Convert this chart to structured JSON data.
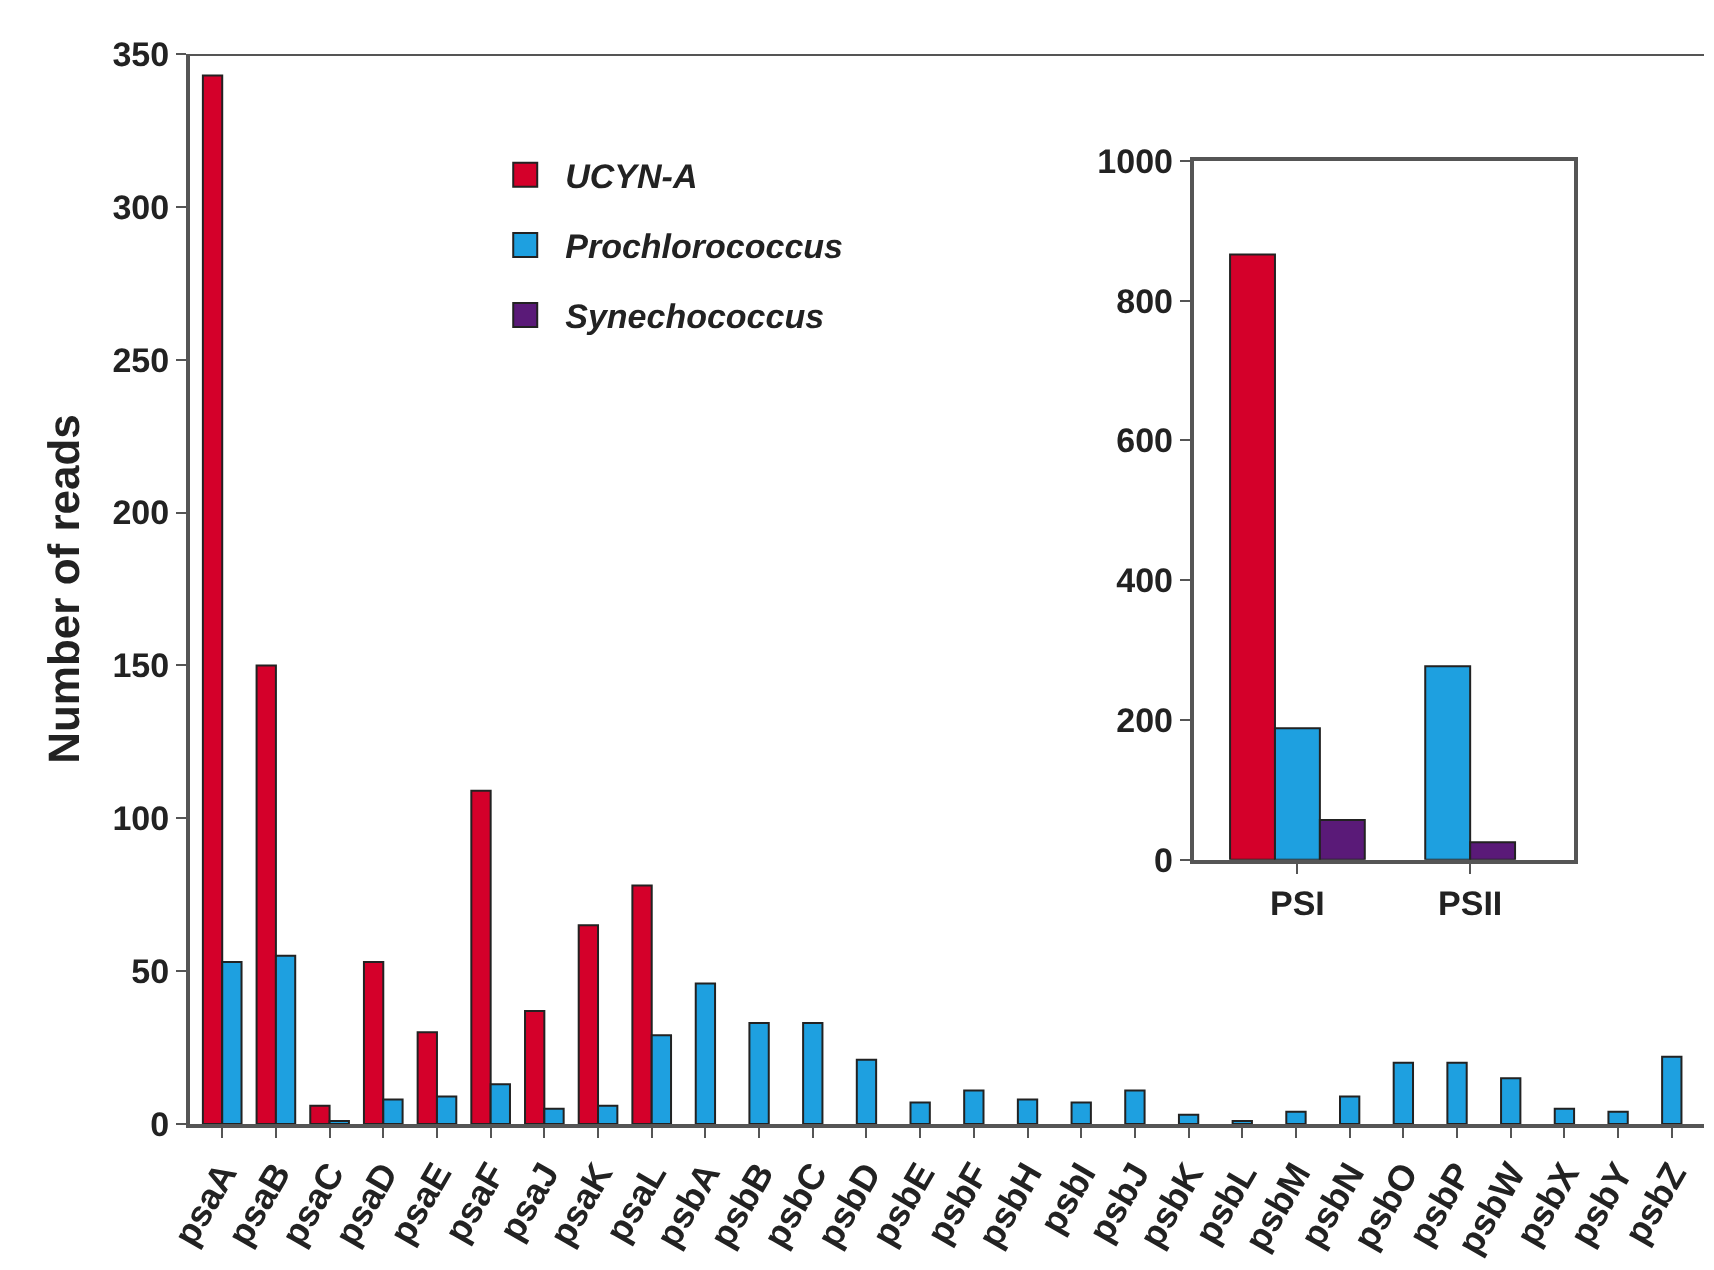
{
  "chart_data": [
    {
      "type": "bar",
      "ylabel": "Number of reads",
      "categories": [
        "psaA",
        "psaB",
        "psaC",
        "psaD",
        "psaE",
        "psaF",
        "psaJ",
        "psaK",
        "psaL",
        "psbA",
        "psbB",
        "psbC",
        "psbD",
        "psbE",
        "psbF",
        "psbH",
        "psbI",
        "psbJ",
        "psbK",
        "psbL",
        "psbM",
        "psbN",
        "psbO",
        "psbP",
        "psbW",
        "psbX",
        "psbY",
        "psbZ"
      ],
      "series": [
        {
          "name": "UCYN-A",
          "color": "#d4002a",
          "values": [
            343,
            150,
            6,
            53,
            30,
            109,
            37,
            65,
            78,
            null,
            null,
            null,
            null,
            null,
            null,
            null,
            null,
            null,
            null,
            null,
            null,
            null,
            null,
            null,
            null,
            null,
            null,
            null
          ]
        },
        {
          "name": "Prochlorococcus",
          "color": "#1ea0e0",
          "values": [
            53,
            55,
            1,
            8,
            9,
            13,
            5,
            6,
            29,
            46,
            33,
            33,
            21,
            7,
            11,
            8,
            7,
            11,
            3,
            1,
            4,
            9,
            20,
            20,
            15,
            5,
            4,
            22
          ]
        },
        {
          "name": "Synechococcus",
          "color": "#5a1a78",
          "values": [
            null,
            null,
            null,
            null,
            null,
            null,
            null,
            null,
            null,
            null,
            null,
            null,
            null,
            null,
            null,
            null,
            null,
            null,
            null,
            null,
            null,
            null,
            null,
            null,
            null,
            null,
            null,
            null
          ]
        }
      ],
      "ylim": [
        0,
        350
      ],
      "yticks": [
        0,
        50,
        100,
        150,
        200,
        250,
        300,
        350
      ],
      "legend": "top left"
    },
    {
      "type": "bar",
      "categories": [
        "PSI",
        "PSII"
      ],
      "series": [
        {
          "color": "#d4002a",
          "values": [
            866,
            null
          ]
        },
        {
          "color": "#1ea0e0",
          "values": [
            188,
            277
          ]
        },
        {
          "color": "#5a1a78",
          "values": [
            57,
            25
          ]
        }
      ],
      "ylim": [
        0,
        1000
      ],
      "yticks": [
        0,
        200,
        400,
        600,
        800,
        1000
      ]
    }
  ]
}
